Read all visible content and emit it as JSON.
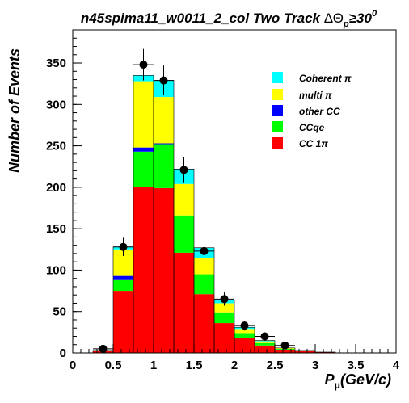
{
  "chart_data": {
    "type": "bar",
    "stacked": true,
    "title": {
      "prefix": "n45spima11_w0011_2_col Two Track ",
      "delta": "Δ",
      "theta": "Θ",
      "sub": "p",
      "geq": "≥",
      "value": "30",
      "sup": "0"
    },
    "xlabel": {
      "main": "P",
      "sub": "μ",
      "unit": "(GeV/c)"
    },
    "ylabel": "Number of Events",
    "xlim": [
      0,
      4
    ],
    "ylim": [
      0,
      390
    ],
    "x_ticks": [
      "0",
      "0.5",
      "1",
      "1.5",
      "2",
      "2.5",
      "3",
      "3.5",
      "4"
    ],
    "y_ticks": [
      "0",
      "50",
      "100",
      "150",
      "200",
      "250",
      "300",
      "350"
    ],
    "x_tick_values": [
      0,
      0.5,
      1,
      1.5,
      2,
      2.5,
      3,
      3.5,
      4
    ],
    "y_tick_values": [
      0,
      50,
      100,
      150,
      200,
      250,
      300,
      350
    ],
    "bin_edges": [
      0,
      0.25,
      0.5,
      0.75,
      1.0,
      1.25,
      1.5,
      1.75,
      2.0,
      2.25,
      2.5,
      2.75,
      3.0,
      3.25,
      3.5,
      3.75,
      4.0
    ],
    "series": [
      {
        "name": "CC 1π",
        "color": "#ff0000",
        "values": [
          0,
          2,
          75,
          200,
          199,
          121,
          71,
          36,
          18,
          9,
          4,
          2,
          1,
          0,
          0,
          0
        ]
      },
      {
        "name": "CCqe",
        "color": "#00ff00",
        "values": [
          0,
          1,
          13,
          43,
          53,
          45,
          24,
          13,
          6,
          3,
          1,
          1,
          0,
          0,
          0,
          0
        ]
      },
      {
        "name": "other CC",
        "color": "#0000ff",
        "values": [
          0,
          0,
          5,
          5,
          1,
          0,
          0,
          0,
          0,
          0,
          0,
          0,
          0,
          0,
          0,
          0
        ]
      },
      {
        "name": "multi π",
        "color": "#ffff00",
        "values": [
          0,
          0,
          32,
          80,
          56,
          38,
          20,
          11,
          5,
          2,
          1,
          0,
          0,
          0,
          0,
          0
        ]
      },
      {
        "name": "Coherent π",
        "color": "#00ffff",
        "values": [
          0,
          0,
          3,
          7,
          20,
          18,
          12,
          4,
          2,
          1,
          0,
          0,
          0,
          0,
          0,
          0
        ]
      }
    ],
    "data_points": [
      {
        "x": 0.375,
        "y": 5,
        "err": 2
      },
      {
        "x": 0.625,
        "y": 128,
        "err": 11
      },
      {
        "x": 0.875,
        "y": 348,
        "err": 19
      },
      {
        "x": 1.125,
        "y": 329,
        "err": 18
      },
      {
        "x": 1.375,
        "y": 221,
        "err": 15
      },
      {
        "x": 1.625,
        "y": 123,
        "err": 11
      },
      {
        "x": 1.875,
        "y": 65,
        "err": 8
      },
      {
        "x": 2.125,
        "y": 33,
        "err": 6
      },
      {
        "x": 2.375,
        "y": 20,
        "err": 4.5
      },
      {
        "x": 2.625,
        "y": 9,
        "err": 3
      }
    ],
    "legend": {
      "placement": "top-right",
      "entries": [
        {
          "label": "Coherent π",
          "color": "#00ffff"
        },
        {
          "label": "multi π",
          "color": "#ffff00"
        },
        {
          "label": "other CC",
          "color": "#0000ff"
        },
        {
          "label": "CCqe",
          "color": "#00ff00"
        },
        {
          "label": "CC 1π",
          "color": "#ff0000"
        }
      ]
    },
    "grid": false
  }
}
